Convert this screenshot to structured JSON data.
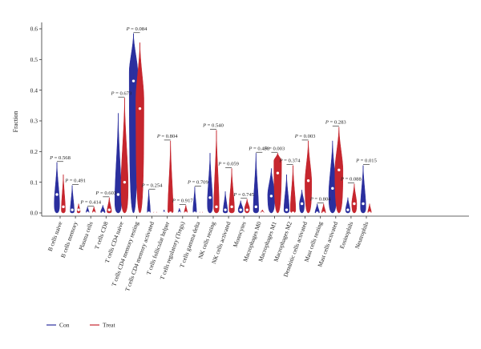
{
  "chart_data": {
    "type": "violin",
    "ylabel": "Fraction",
    "ylim": [
      0,
      0.6
    ],
    "yticks": [
      "0.0",
      "0.1",
      "0.2",
      "0.3",
      "0.4",
      "0.5",
      "0.6"
    ],
    "categories": [
      "B cells naive",
      "B cells memory",
      "Plasma cells",
      "T cells CD8",
      "T cells CD4 naive",
      "T cells CD4 memory resting",
      "T cells CD4 memory activated",
      "T cells follicular helper",
      "T cells regulatory (Tregs)",
      "T cells gamma delta",
      "NK cells resting",
      "NK cells activated",
      "Monocytes",
      "Macrophages M0",
      "Macrophages M1",
      "Macrophages M2",
      "Dendritic cells activated",
      "Mast cells resting",
      "Mast cells activated",
      "Eosinophils",
      "Neutrophils"
    ],
    "p_prefix": "P =",
    "p_values": [
      "0.568",
      "0.491",
      "0.414",
      "0.603",
      "0.673",
      "0.084",
      "0.254",
      "0.804",
      "0.917",
      "0.709",
      "0.540",
      "0.059",
      "0.745",
      "0.458",
      "0.003",
      "0.374",
      "0.003",
      "0.804",
      "0.283",
      "0.088",
      "0.015"
    ],
    "series": [
      {
        "name": "Con",
        "color": "#2b2f9e",
        "max": [
          0.165,
          0.09,
          0.02,
          0.025,
          0.325,
          0.585,
          0.075,
          0.01,
          0.015,
          0.085,
          0.195,
          0.07,
          0.04,
          0.195,
          0.145,
          0.125,
          0.075,
          0.03,
          0.235,
          0.05,
          0.155
        ],
        "median": [
          0.06,
          0.01,
          0.0,
          0.0,
          0.06,
          0.43,
          0.0,
          0.0,
          0.0,
          0.0,
          0.05,
          0.01,
          0.01,
          0.02,
          0.055,
          0.01,
          0.03,
          0.0,
          0.08,
          0.01,
          0.03
        ],
        "widest": [
          0.03,
          0.005,
          0.002,
          0.003,
          0.04,
          0.46,
          0.003,
          0.0,
          0.001,
          0.005,
          0.03,
          0.005,
          0.01,
          0.01,
          0.06,
          0.01,
          0.03,
          0.001,
          0.06,
          0.01,
          0.02
        ],
        "width": [
          0.6,
          0.45,
          0.35,
          0.5,
          0.75,
          0.95,
          0.35,
          0.25,
          0.3,
          0.4,
          0.6,
          0.5,
          0.55,
          0.6,
          0.8,
          0.6,
          0.55,
          0.5,
          0.85,
          0.5,
          0.6
        ]
      },
      {
        "name": "Treat",
        "color": "#c6262e",
        "max": [
          0.125,
          0.03,
          0.02,
          0.05,
          0.375,
          0.555,
          0.0,
          0.235,
          0.025,
          0.0,
          0.27,
          0.145,
          0.045,
          0.01,
          0.195,
          0.155,
          0.235,
          0.03,
          0.28,
          0.095,
          0.03
        ],
        "median": [
          0.02,
          0.01,
          0.0,
          0.01,
          0.1,
          0.34,
          0.0,
          0.0,
          0.0,
          0.0,
          0.02,
          0.02,
          0.01,
          0.0,
          0.13,
          0.0,
          0.105,
          0.0,
          0.14,
          0.03,
          0.0
        ],
        "widest": [
          0.01,
          0.005,
          0.002,
          0.005,
          0.09,
          0.37,
          0.0,
          0.005,
          0.002,
          0.0,
          0.02,
          0.01,
          0.015,
          0.002,
          0.17,
          0.01,
          0.1,
          0.001,
          0.14,
          0.03,
          0.002
        ],
        "width": [
          0.45,
          0.35,
          0.35,
          0.5,
          0.8,
          0.9,
          0.1,
          0.6,
          0.35,
          0.1,
          0.6,
          0.6,
          0.55,
          0.35,
          0.85,
          0.6,
          0.75,
          0.45,
          0.9,
          0.55,
          0.4
        ]
      }
    ],
    "legend": {
      "position": "bottom-left",
      "items": [
        "Con",
        "Treat"
      ]
    }
  }
}
